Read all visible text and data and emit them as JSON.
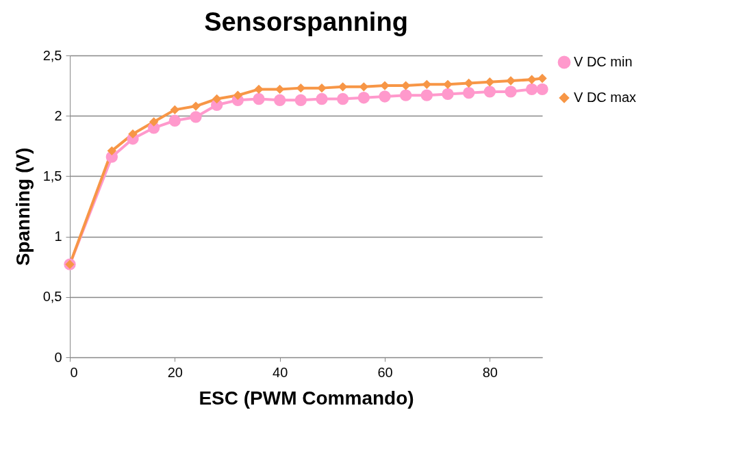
{
  "chart_data": {
    "type": "line",
    "title": "Sensorspanning",
    "xlabel": "ESC (PWM Commando)",
    "ylabel": "Spanning (V)",
    "x": [
      0,
      8,
      12,
      16,
      20,
      24,
      28,
      32,
      36,
      40,
      44,
      48,
      52,
      56,
      60,
      64,
      68,
      72,
      76,
      80,
      84,
      88,
      90
    ],
    "series": [
      {
        "name": "V DC min",
        "color": "#ff99cc",
        "marker": "circle",
        "values": [
          0.77,
          1.66,
          1.81,
          1.9,
          1.96,
          1.99,
          2.09,
          2.13,
          2.14,
          2.13,
          2.13,
          2.14,
          2.14,
          2.15,
          2.16,
          2.17,
          2.17,
          2.18,
          2.19,
          2.2,
          2.2,
          2.22,
          2.22
        ]
      },
      {
        "name": "V DC max",
        "color": "#f79646",
        "marker": "diamond",
        "values": [
          0.77,
          1.71,
          1.85,
          1.95,
          2.05,
          2.08,
          2.14,
          2.17,
          2.22,
          2.22,
          2.23,
          2.23,
          2.24,
          2.24,
          2.25,
          2.25,
          2.26,
          2.26,
          2.27,
          2.28,
          2.29,
          2.3,
          2.31
        ]
      }
    ],
    "xlim": [
      0,
      90
    ],
    "xticks": [
      0,
      20,
      40,
      60,
      80
    ],
    "ylim": [
      0,
      2.5
    ],
    "yticks": [
      0,
      {
        "value": 0.5,
        "label": "0,5"
      },
      1,
      {
        "value": 1.5,
        "label": "1,5"
      },
      2,
      {
        "value": 2.5,
        "label": "2,5"
      }
    ],
    "grid": "y",
    "legend": "right",
    "line_style": "solid"
  }
}
